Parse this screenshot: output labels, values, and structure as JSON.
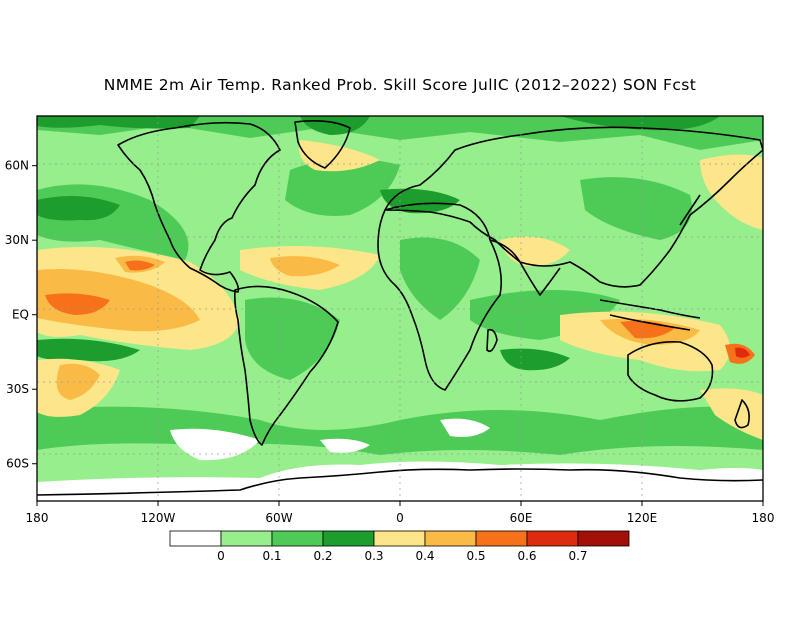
{
  "title": "NMME 2m Air Temp. Ranked Prob. Skill Score JulIC (2012–2022) SON Fcst",
  "chart_data": {
    "type": "heatmap",
    "title": "NMME 2m Air Temp. Ranked Prob. Skill Score JulIC (2012–2022) SON Fcst",
    "xlim": [
      -180,
      180
    ],
    "ylim": [
      -75,
      80
    ],
    "grid": true,
    "x_ticks": [
      {
        "value": -180,
        "label": "180"
      },
      {
        "value": -120,
        "label": "120W"
      },
      {
        "value": -60,
        "label": "60W"
      },
      {
        "value": 0,
        "label": "0"
      },
      {
        "value": 60,
        "label": "60E"
      },
      {
        "value": 120,
        "label": "120E"
      },
      {
        "value": 180,
        "label": "180"
      }
    ],
    "y_ticks": [
      {
        "value": 60,
        "label": "60N"
      },
      {
        "value": 30,
        "label": "30N"
      },
      {
        "value": 0,
        "label": "EQ"
      },
      {
        "value": -30,
        "label": "30S"
      },
      {
        "value": -60,
        "label": "60S"
      }
    ],
    "colorbar": {
      "labels": [
        "0",
        "0.1",
        "0.2",
        "0.3",
        "0.4",
        "0.5",
        "0.6",
        "0.7"
      ],
      "colors": [
        "#ffffff",
        "#96ee8c",
        "#4ecb57",
        "#1d9d2d",
        "#fde58a",
        "#f9bb46",
        "#f7711a",
        "#de2b0f",
        "#a31007"
      ]
    }
  }
}
